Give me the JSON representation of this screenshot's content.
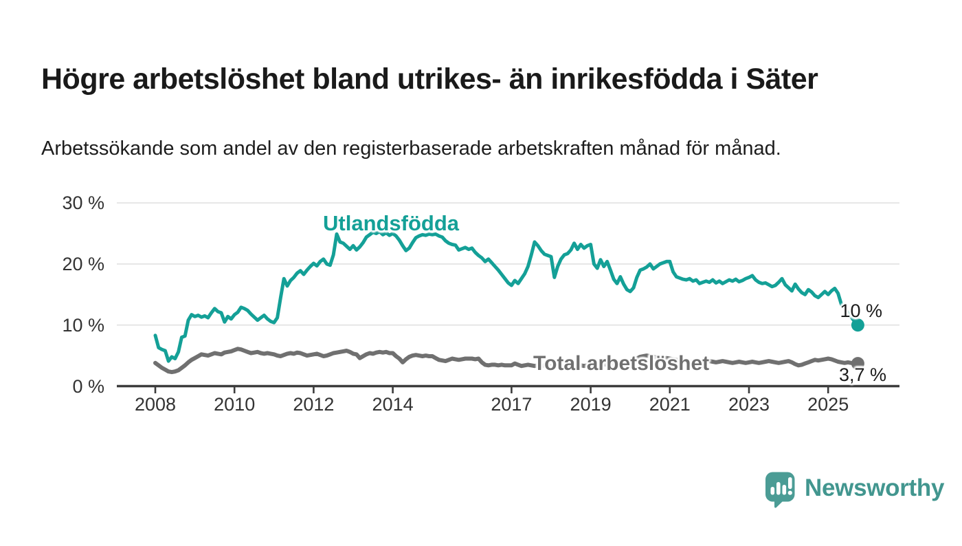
{
  "header": {
    "title": "Högre arbetslöshet bland utrikes- än inrikesfödda i Säter",
    "subtitle": "Arbetssökande som andel av den registerbaserade arbetskraften månad för månad."
  },
  "chart_data": {
    "type": "line",
    "unit": "%",
    "x_start": 2008.0,
    "x_step_years": 0.083333,
    "ylim": [
      0,
      30
    ],
    "grid": true,
    "legend_position": "inline-labels",
    "x_ticks": [
      {
        "value": 2008,
        "label": "2008"
      },
      {
        "value": 2010,
        "label": "2010"
      },
      {
        "value": 2012,
        "label": "2012"
      },
      {
        "value": 2014,
        "label": "2014"
      },
      {
        "value": 2017,
        "label": "2017"
      },
      {
        "value": 2019,
        "label": "2019"
      },
      {
        "value": 2021,
        "label": "2021"
      },
      {
        "value": 2023,
        "label": "2023"
      },
      {
        "value": 2025,
        "label": "2025"
      }
    ],
    "y_ticks": [
      {
        "value": 30,
        "label": "30 %"
      },
      {
        "value": 20,
        "label": "20 %"
      },
      {
        "value": 10,
        "label": "10 %"
      },
      {
        "value": 0,
        "label": "0 %"
      }
    ],
    "series": [
      {
        "name": "Utlandsfödda",
        "color": "#14A097",
        "end_label": "10 %",
        "end_value": 10.0,
        "values": [
          8.3,
          6.3,
          6.0,
          5.8,
          4.1,
          4.8,
          4.5,
          5.6,
          8.0,
          8.2,
          10.8,
          11.7,
          11.4,
          11.6,
          11.3,
          11.5,
          11.2,
          12.0,
          12.7,
          12.2,
          12.0,
          10.5,
          11.4,
          11.0,
          11.7,
          12.1,
          12.9,
          12.7,
          12.4,
          11.8,
          11.3,
          10.8,
          11.2,
          11.6,
          11.0,
          10.6,
          10.4,
          11.2,
          14.5,
          17.6,
          16.4,
          17.3,
          17.8,
          18.5,
          18.9,
          18.3,
          19.0,
          19.6,
          20.1,
          19.7,
          20.4,
          20.8,
          20.0,
          19.8,
          21.5,
          24.9,
          23.6,
          23.4,
          22.9,
          22.4,
          23.0,
          22.3,
          22.8,
          23.5,
          24.4,
          24.8,
          25.2,
          25.0,
          25.3,
          24.8,
          25.1,
          24.7,
          25.0,
          24.6,
          23.9,
          23.0,
          22.2,
          22.6,
          23.5,
          24.3,
          24.6,
          24.8,
          24.7,
          24.9,
          24.8,
          24.9,
          24.6,
          24.4,
          23.8,
          23.4,
          23.2,
          23.1,
          22.3,
          22.5,
          22.7,
          22.4,
          22.6,
          21.9,
          21.4,
          21.0,
          20.4,
          20.8,
          20.2,
          19.6,
          19.0,
          18.3,
          17.6,
          16.9,
          16.5,
          17.3,
          16.8,
          17.6,
          18.4,
          19.6,
          21.5,
          23.6,
          23.0,
          22.2,
          21.6,
          21.4,
          21.2,
          17.8,
          19.6,
          20.8,
          21.5,
          21.7,
          22.3,
          23.4,
          22.4,
          23.2,
          22.6,
          23.0,
          23.2,
          20.0,
          19.3,
          20.7,
          19.6,
          20.4,
          19.0,
          17.5,
          16.8,
          17.9,
          16.7,
          15.8,
          15.5,
          16.1,
          17.8,
          19.0,
          19.2,
          19.5,
          20.0,
          19.2,
          19.6,
          20.0,
          20.2,
          20.4,
          20.4,
          18.7,
          17.9,
          17.7,
          17.5,
          17.4,
          17.6,
          17.2,
          17.4,
          16.8,
          17.0,
          17.2,
          17.0,
          17.4,
          16.9,
          17.2,
          16.8,
          17.1,
          17.4,
          17.2,
          17.5,
          17.1,
          17.3,
          17.6,
          17.8,
          18.1,
          17.4,
          17.0,
          16.8,
          16.9,
          16.6,
          16.3,
          16.5,
          17.0,
          17.6,
          16.6,
          16.1,
          15.6,
          16.7,
          15.9,
          15.3,
          15.0,
          15.8,
          15.4,
          14.8,
          14.5,
          15.0,
          15.5,
          15.0,
          15.6,
          16.0,
          15.2,
          13.4,
          12.7,
          12.0,
          11.3,
          10.6,
          10.0
        ]
      },
      {
        "name": "Total arbetslöshet",
        "color": "#707070",
        "end_label": "3,7 %",
        "end_value": 3.7,
        "values": [
          3.8,
          3.4,
          3.0,
          2.7,
          2.4,
          2.3,
          2.4,
          2.6,
          3.0,
          3.4,
          3.9,
          4.3,
          4.6,
          4.9,
          5.2,
          5.1,
          5.0,
          5.2,
          5.4,
          5.3,
          5.2,
          5.5,
          5.6,
          5.7,
          5.9,
          6.1,
          6.0,
          5.8,
          5.6,
          5.4,
          5.5,
          5.6,
          5.4,
          5.3,
          5.4,
          5.3,
          5.2,
          5.0,
          4.9,
          5.1,
          5.3,
          5.4,
          5.3,
          5.5,
          5.4,
          5.2,
          5.0,
          5.1,
          5.2,
          5.3,
          5.1,
          4.9,
          5.0,
          5.2,
          5.4,
          5.5,
          5.6,
          5.7,
          5.8,
          5.6,
          5.3,
          5.2,
          4.6,
          4.9,
          5.2,
          5.4,
          5.3,
          5.5,
          5.6,
          5.5,
          5.6,
          5.4,
          5.4,
          4.9,
          4.5,
          3.9,
          4.4,
          4.8,
          5.0,
          5.1,
          5.0,
          4.9,
          5.0,
          4.9,
          4.9,
          4.6,
          4.3,
          4.2,
          4.1,
          4.3,
          4.5,
          4.4,
          4.3,
          4.4,
          4.5,
          4.5,
          4.5,
          4.4,
          4.5,
          3.9,
          3.5,
          3.4,
          3.5,
          3.5,
          3.4,
          3.5,
          3.4,
          3.4,
          3.4,
          3.7,
          3.5,
          3.3,
          3.4,
          3.5,
          3.4,
          3.3,
          3.4,
          3.3,
          3.4,
          3.3,
          3.3,
          3.2,
          3.3,
          3.2,
          3.1,
          3.2,
          3.3,
          3.2,
          3.3,
          3.4,
          3.3,
          3.4,
          3.4,
          3.5,
          3.4,
          3.5,
          3.6,
          3.5,
          3.6,
          3.7,
          3.6,
          3.7,
          3.8,
          3.9,
          4.0,
          4.2,
          4.5,
          4.8,
          4.9,
          5.0,
          4.9,
          4.8,
          4.7,
          4.6,
          4.5,
          4.6,
          4.5,
          4.4,
          4.3,
          4.2,
          4.1,
          4.0,
          3.9,
          4.0,
          3.9,
          3.8,
          3.9,
          4.0,
          4.1,
          4.0,
          3.9,
          4.0,
          4.1,
          4.0,
          3.9,
          3.8,
          3.9,
          4.0,
          3.9,
          3.8,
          3.9,
          4.0,
          3.9,
          3.8,
          3.9,
          4.0,
          4.1,
          4.0,
          3.9,
          3.8,
          3.9,
          4.0,
          4.1,
          3.9,
          3.6,
          3.4,
          3.5,
          3.7,
          3.9,
          4.1,
          4.3,
          4.2,
          4.3,
          4.4,
          4.5,
          4.4,
          4.2,
          4.0,
          3.9,
          3.8,
          3.9,
          3.8,
          3.7,
          3.7
        ]
      }
    ],
    "colors": {
      "grid": "#DCDCDC",
      "axis": "#3C3C3C",
      "tick_label": "#333333",
      "end_label": "#1B1B1B"
    }
  },
  "branding": {
    "name": "Newsworthy",
    "icon": "newsworthy-speech-bubble-chart-icon",
    "icon_color": "#4B9C95",
    "text_color": "#42968F"
  }
}
